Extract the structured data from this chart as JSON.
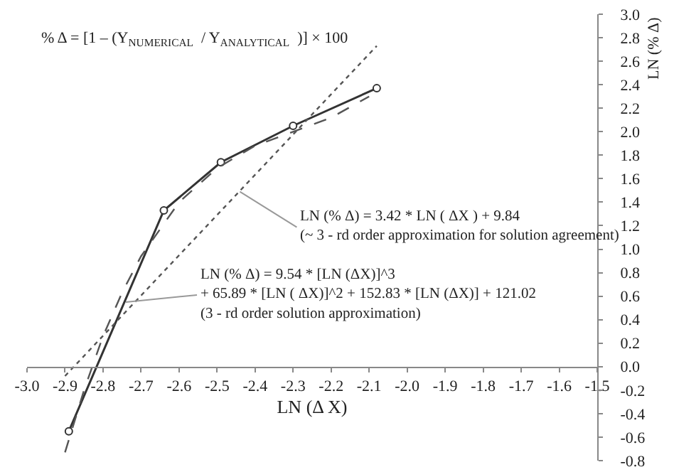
{
  "chart_data": {
    "type": "line",
    "xlabel": "LN (Δ X)",
    "ylabel": "LN (% Δ)",
    "xlim": [
      -3.0,
      -1.5
    ],
    "xticks": [
      {
        "value": -3.0,
        "label": "-3.0"
      },
      -2.9,
      -2.8,
      -2.7,
      -2.6,
      -2.5,
      -2.4,
      -2.3,
      -2.2,
      -2.1,
      {
        "value": -2.0,
        "label": "-2.0"
      },
      -1.9,
      -1.8,
      -1.7,
      -1.6,
      -1.5
    ],
    "ylim": [
      -0.8,
      3.0
    ],
    "yticks": [
      -0.8,
      -0.6,
      -0.4,
      -0.2,
      {
        "value": 0,
        "label": "0.0"
      },
      0.2,
      0.4,
      0.6,
      0.8,
      {
        "value": 1,
        "label": "1.0"
      },
      1.2,
      1.4,
      1.6,
      1.8,
      {
        "value": 2,
        "label": "2.0"
      },
      2.2,
      2.4,
      2.6,
      2.8,
      {
        "value": 3,
        "label": "3.0"
      }
    ],
    "series": [
      {
        "type": "line",
        "color": "#333333",
        "line_style": "solid",
        "marker": "circle",
        "x": [
          -2.89,
          -2.64,
          -2.49,
          -2.3,
          -2.08
        ],
        "values": [
          -0.55,
          1.33,
          1.74,
          2.05,
          2.37
        ]
      },
      {
        "type": "line",
        "color": "#555555",
        "line_style": "dashed",
        "marker": "none",
        "x": [
          -2.9,
          -2.85,
          -2.8,
          -2.75,
          -2.7,
          -2.6,
          -2.5,
          -2.4,
          -2.3,
          -2.2,
          -2.1
        ],
        "values": [
          -0.73,
          -0.2,
          0.26,
          0.63,
          0.94,
          1.4,
          1.69,
          1.88,
          2.0,
          2.12,
          2.3
        ]
      },
      {
        "type": "line",
        "color": "#555555",
        "line_style": "dotted",
        "marker": "none",
        "x": [
          -2.9,
          -2.08
        ],
        "values": [
          -0.08,
          2.73
        ]
      }
    ],
    "annotations": [
      "% Δ = [1 – (Y$_{NUMERICAL}$  / Y$_{ANALYTICAL}$  )] × 100",
      {
        "text": "LN (% Δ) = 3.42 * LN ( ΔX ) + 9.84\n(~ 3 - rd order approximation for solution agreement)",
        "x": -2.44,
        "y": 1.49
      },
      {
        "text": "LN (% Δ) = 9.54 * [LN (ΔX)]^3\n+ 65.89 * [LN ( ΔX)]^2 + 152.83 * [LN (ΔX)] + 121.02\n(3 - rd order solution approximation)",
        "x": -2.74,
        "y": 0.55
      }
    ],
    "grid": false
  }
}
